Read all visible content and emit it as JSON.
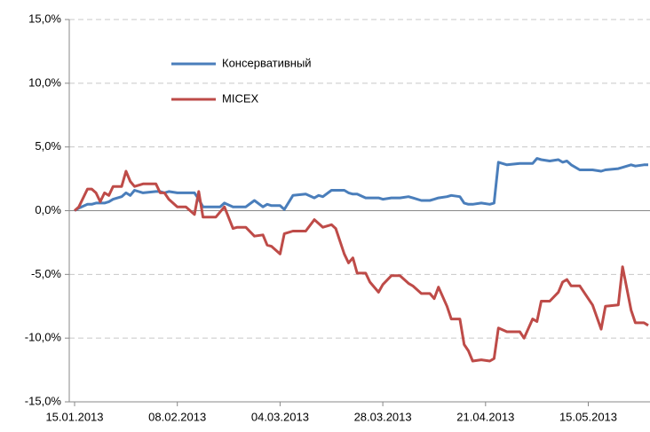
{
  "chart_data": {
    "type": "line",
    "x": [
      "15.01.2013",
      "16.01.2013",
      "18.01.2013",
      "19.01.2013",
      "20.01.2013",
      "21.01.2013",
      "22.01.2013",
      "23.01.2013",
      "24.01.2013",
      "26.01.2013",
      "27.01.2013",
      "28.01.2013",
      "29.01.2013",
      "31.01.2013",
      "03.02.2013",
      "04.02.2013",
      "05.02.2013",
      "06.02.2013",
      "08.02.2013",
      "10.02.2013",
      "12.02.2013",
      "13.02.2013",
      "14.02.2013",
      "17.02.2013",
      "18.02.2013",
      "19.02.2013",
      "21.02.2013",
      "22.02.2013",
      "24.02.2013",
      "26.02.2013",
      "28.02.2013",
      "01.03.2013",
      "02.03.2013",
      "04.03.2013",
      "05.03.2013",
      "07.03.2013",
      "10.03.2013",
      "12.03.2013",
      "13.03.2013",
      "14.03.2013",
      "16.03.2013",
      "17.03.2013",
      "19.03.2013",
      "20.03.2013",
      "21.03.2013",
      "22.03.2013",
      "24.03.2013",
      "25.03.2013",
      "27.03.2013",
      "28.03.2013",
      "30.03.2013",
      "01.04.2013",
      "03.04.2013",
      "04.04.2013",
      "06.04.2013",
      "08.04.2013",
      "09.04.2013",
      "10.04.2013",
      "12.04.2013",
      "13.04.2013",
      "15.04.2013",
      "16.04.2013",
      "17.04.2013",
      "18.04.2013",
      "20.04.2013",
      "22.04.2013",
      "23.04.2013",
      "24.04.2013",
      "26.04.2013",
      "29.04.2013",
      "30.04.2013",
      "02.05.2013",
      "03.05.2013",
      "04.05.2013",
      "06.05.2013",
      "08.05.2013",
      "09.05.2013",
      "10.05.2013",
      "11.05.2013",
      "13.05.2013",
      "16.05.2013",
      "18.05.2013",
      "19.05.2013",
      "22.05.2013",
      "23.05.2013",
      "25.05.2013",
      "26.05.2013",
      "28.05.2013",
      "29.05.2013"
    ],
    "series": [
      {
        "name": "Консервативный",
        "color": "#4a7ebb",
        "values": [
          0,
          0.2,
          0.5,
          0.5,
          0.6,
          0.6,
          0.6,
          0.7,
          0.9,
          1.1,
          1.4,
          1.2,
          1.6,
          1.4,
          1.5,
          1.5,
          1.4,
          1.5,
          1.4,
          1.4,
          1.4,
          0.9,
          0.3,
          0.3,
          0.3,
          0.6,
          0.3,
          0.3,
          0.3,
          0.8,
          0.3,
          0.5,
          0.4,
          0.4,
          0.1,
          1.2,
          1.3,
          1.0,
          1.2,
          1.1,
          1.6,
          1.6,
          1.6,
          1.4,
          1.3,
          1.3,
          1.0,
          1.0,
          1.0,
          0.9,
          1.0,
          1.0,
          1.1,
          1.0,
          0.8,
          0.8,
          0.9,
          1.0,
          1.1,
          1.2,
          1.1,
          0.6,
          0.5,
          0.5,
          0.6,
          0.5,
          0.6,
          3.8,
          3.6,
          3.7,
          3.7,
          3.7,
          4.1,
          4.0,
          3.9,
          4.0,
          3.8,
          3.9,
          3.6,
          3.2,
          3.2,
          3.1,
          3.2,
          3.3,
          3.4,
          3.6,
          3.5,
          3.6,
          3.6
        ]
      },
      {
        "name": "MICEX",
        "color": "#be4b48",
        "values": [
          0,
          0.3,
          1.7,
          1.7,
          1.4,
          0.7,
          1.4,
          1.2,
          1.9,
          1.9,
          3.1,
          2.3,
          1.9,
          2.1,
          2.1,
          1.4,
          1.4,
          0.9,
          0.3,
          0.3,
          -0.3,
          1.5,
          -0.5,
          -0.5,
          -0.1,
          0.3,
          -1.4,
          -1.3,
          -1.3,
          -2.0,
          -1.9,
          -2.7,
          -2.8,
          -3.4,
          -1.8,
          -1.6,
          -1.6,
          -0.7,
          -1.0,
          -1.3,
          -1.1,
          -1.4,
          -3.4,
          -4.1,
          -3.7,
          -4.9,
          -4.9,
          -5.6,
          -6.4,
          -5.8,
          -5.1,
          -5.1,
          -5.7,
          -5.9,
          -6.5,
          -6.5,
          -6.9,
          -6.0,
          -7.5,
          -8.5,
          -8.5,
          -10.5,
          -11.0,
          -11.8,
          -11.7,
          -11.8,
          -11.6,
          -9.2,
          -9.5,
          -9.5,
          -10.0,
          -8.5,
          -8.7,
          -7.1,
          -7.1,
          -6.4,
          -5.6,
          -5.4,
          -5.9,
          -5.9,
          -7.4,
          -9.3,
          -7.5,
          -7.4,
          -4.4,
          -7.8,
          -8.8,
          -8.8,
          -9.0
        ]
      }
    ],
    "xlim": [
      "15.01.2013",
      "29.05.2013"
    ],
    "xticks": [
      "15.01.2013",
      "08.02.2013",
      "04.03.2013",
      "28.03.2013",
      "21.04.2013",
      "15.05.2013"
    ],
    "ylim": [
      -15,
      15
    ],
    "yticks": [
      {
        "value": -15,
        "label": "-15,0%"
      },
      {
        "value": -10,
        "label": "-10,0%"
      },
      {
        "value": -5,
        "label": "-5,0%"
      },
      {
        "value": 0,
        "label": "0,0%"
      },
      {
        "value": 5,
        "label": "5,0%"
      },
      {
        "value": 10,
        "label": "10,0%"
      },
      {
        "value": 15,
        "label": "15,0%"
      }
    ],
    "grid": true
  }
}
